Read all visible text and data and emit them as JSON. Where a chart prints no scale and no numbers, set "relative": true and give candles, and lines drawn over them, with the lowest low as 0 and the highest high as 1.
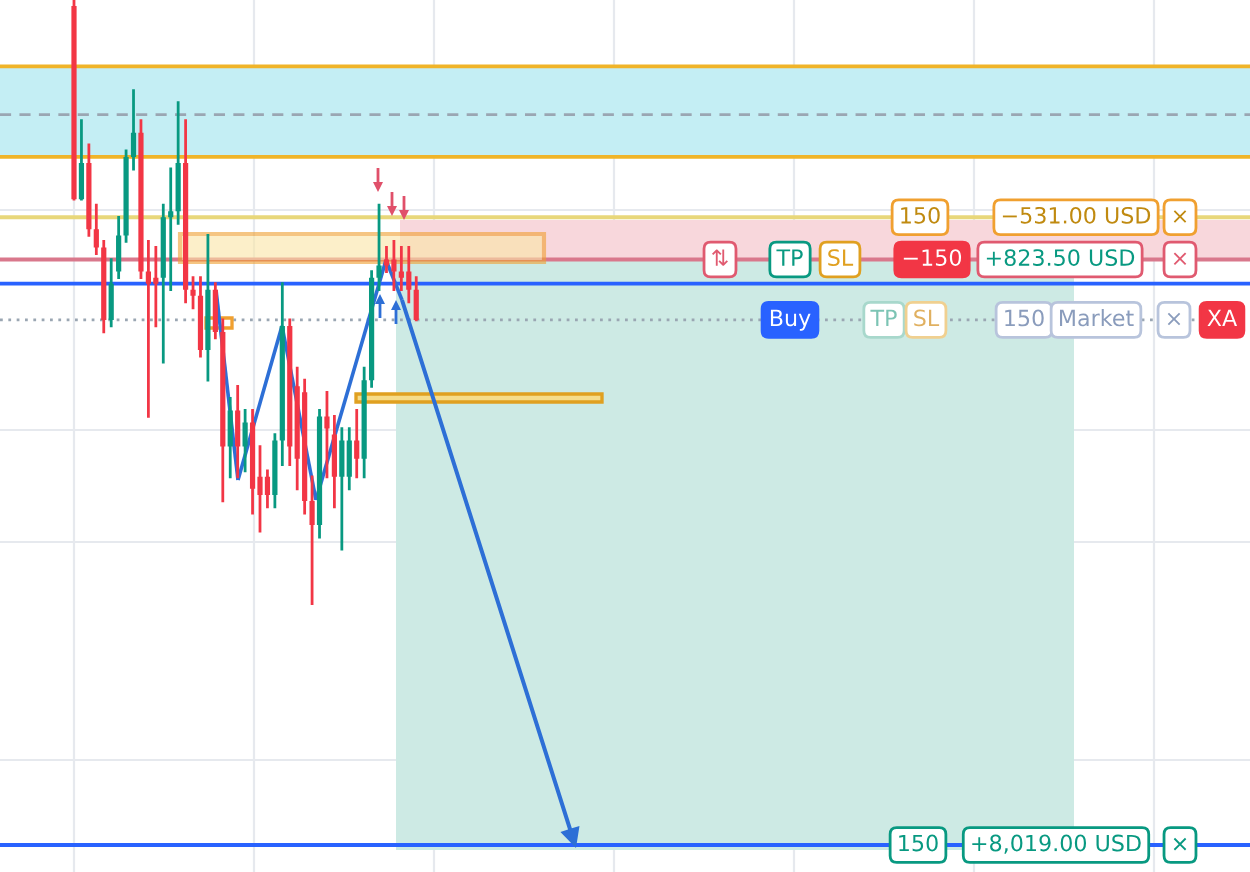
{
  "chart_data": {
    "type": "candlestick",
    "relative": true,
    "categories": [
      null,
      null,
      null,
      null,
      null,
      null,
      null,
      null,
      null,
      null,
      null,
      null,
      null,
      null,
      null,
      null,
      null,
      null,
      null,
      null,
      null,
      null,
      null,
      null,
      null,
      null,
      null,
      null,
      null,
      null,
      null,
      null,
      null,
      null,
      null,
      null,
      null,
      null,
      null,
      null,
      null,
      null,
      null,
      null,
      null,
      null,
      null
    ],
    "ohlc": [
      [
        0.99,
        1.0,
        0.67,
        0.67
      ],
      [
        0.67,
        0.8,
        0.67,
        0.73
      ],
      [
        0.73,
        0.76,
        0.61,
        0.62
      ],
      [
        0.62,
        0.66,
        0.58,
        0.59
      ],
      [
        0.59,
        0.6,
        0.45,
        0.47
      ],
      [
        0.47,
        0.57,
        0.46,
        0.53
      ],
      [
        0.55,
        0.64,
        0.54,
        0.61
      ],
      [
        0.61,
        0.75,
        0.6,
        0.74
      ],
      [
        0.74,
        0.85,
        0.72,
        0.78
      ],
      [
        0.78,
        0.8,
        0.54,
        0.55
      ],
      [
        0.55,
        0.6,
        0.31,
        0.53
      ],
      [
        0.54,
        0.59,
        0.46,
        0.53
      ],
      [
        0.54,
        0.66,
        0.4,
        0.64
      ],
      [
        0.64,
        0.72,
        0.52,
        0.65
      ],
      [
        0.65,
        0.83,
        0.63,
        0.73
      ],
      [
        0.73,
        0.8,
        0.5,
        0.52
      ],
      [
        0.52,
        0.54,
        0.49,
        0.51
      ],
      [
        0.51,
        0.54,
        0.41,
        0.42
      ],
      [
        0.42,
        0.61,
        0.37,
        0.52
      ],
      [
        0.52,
        0.53,
        0.44,
        0.45
      ],
      [
        0.45,
        0.47,
        0.17,
        0.26
      ],
      [
        0.26,
        0.34,
        0.21,
        0.32
      ],
      [
        0.32,
        0.36,
        0.21,
        0.26
      ],
      [
        0.26,
        0.32,
        0.22,
        0.3
      ],
      [
        0.3,
        0.32,
        0.15,
        0.19
      ],
      [
        0.21,
        0.26,
        0.12,
        0.18
      ],
      [
        0.21,
        0.22,
        0.16,
        0.18
      ],
      [
        0.18,
        0.28,
        0.16,
        0.27
      ],
      [
        0.27,
        0.53,
        0.23,
        0.46
      ],
      [
        0.46,
        0.47,
        0.23,
        0.26
      ],
      [
        0.36,
        0.39,
        0.19,
        0.24
      ],
      [
        0.35,
        0.37,
        0.15,
        0.17
      ],
      [
        0.17,
        0.21,
        0.0,
        0.13
      ],
      [
        0.13,
        0.32,
        0.11,
        0.31
      ],
      [
        0.31,
        0.35,
        0.21,
        0.29
      ],
      [
        0.28,
        0.31,
        0.16,
        0.21
      ],
      [
        0.21,
        0.29,
        0.09,
        0.27
      ],
      [
        0.21,
        0.29,
        0.19,
        0.27
      ],
      [
        0.27,
        0.32,
        0.21,
        0.24
      ],
      [
        0.24,
        0.39,
        0.21,
        0.37
      ],
      [
        0.37,
        0.55,
        0.36,
        0.54
      ],
      [
        0.54,
        0.66,
        0.52,
        0.56
      ],
      [
        0.57,
        0.59,
        0.55,
        0.56
      ],
      [
        0.57,
        0.6,
        0.52,
        0.55
      ],
      [
        0.55,
        0.59,
        0.52,
        0.54
      ],
      [
        0.55,
        0.59,
        0.5,
        0.52
      ],
      [
        0.52,
        0.54,
        0.47,
        0.47
      ]
    ],
    "grid": true,
    "bands": [
      {
        "axis": "y",
        "from": 0.74,
        "to": 0.89,
        "color": "#c4eef4"
      }
    ],
    "ref_lines": [
      {
        "axis": "y",
        "value": 0.89,
        "color": "#f0b429"
      },
      {
        "axis": "y",
        "value": 0.74,
        "color": "#f0b429"
      },
      {
        "axis": "y",
        "value": 0.81,
        "color": "#9aa6b2",
        "line_style": "dashed"
      },
      {
        "axis": "y",
        "value": 0.64,
        "color": "#e8d77a"
      },
      {
        "axis": "y",
        "value": 0.57,
        "color": "#d9788c"
      },
      {
        "axis": "y",
        "value": 0.53,
        "color": "#2962ff"
      },
      {
        "axis": "y",
        "value": 0.47,
        "color": "#9aa6b2",
        "line_style": "dotted"
      },
      {
        "axis": "y",
        "value": -0.4,
        "color": "#2962ff"
      }
    ],
    "annotations": [
      {
        "text": "150",
        "y": 0.64
      },
      {
        "text": "−531.00 USD",
        "y": 0.64
      },
      {
        "text": "×",
        "y": 0.64
      },
      {
        "text": "⇅",
        "y": 0.57
      },
      {
        "text": "TP",
        "y": 0.57
      },
      {
        "text": "SL",
        "y": 0.57
      },
      {
        "text": "−150",
        "y": 0.57
      },
      {
        "text": "+823.50 USD",
        "y": 0.57
      },
      {
        "text": "×",
        "y": 0.57
      },
      {
        "text": "Buy",
        "y": 0.47
      },
      {
        "text": "TP",
        "y": 0.47
      },
      {
        "text": "SL",
        "y": 0.47
      },
      {
        "text": "150",
        "y": 0.47
      },
      {
        "text": "Market",
        "y": 0.47
      },
      {
        "text": "×",
        "y": 0.47
      },
      {
        "text": "XA",
        "y": 0.47
      },
      {
        "text": "150",
        "y": -0.4
      },
      {
        "text": "+8,019.00 USD",
        "y": -0.4
      },
      {
        "text": "×",
        "y": -0.4
      }
    ]
  }
}
